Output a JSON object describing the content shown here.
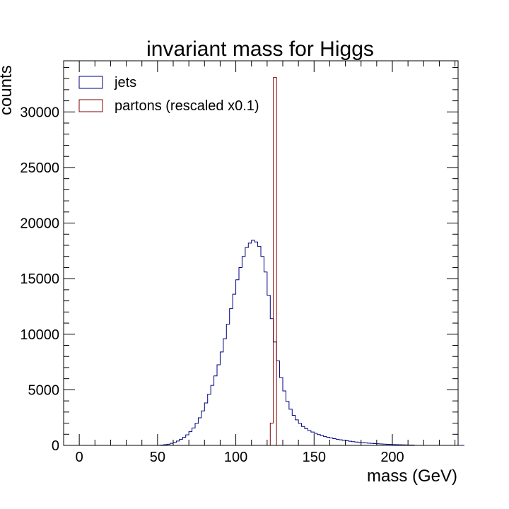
{
  "chart_data": {
    "type": "histogram",
    "title": "invariant mass for Higgs",
    "xlabel": "mass (GeV)",
    "ylabel": "counts",
    "xlim": [
      -10,
      242
    ],
    "ylim": [
      0,
      34600
    ],
    "x_ticks": [
      "0",
      "50",
      "100",
      "150",
      "200"
    ],
    "y_ticks": [
      "0",
      "5000",
      "10000",
      "15000",
      "20000",
      "25000",
      "30000"
    ],
    "grid": false,
    "legend_position": "top-left",
    "bin_width": 2,
    "series": [
      {
        "name": "jets",
        "color": "#000080",
        "bin_start": 0,
        "values": [
          0,
          0,
          0,
          0,
          0,
          0,
          0,
          0,
          0,
          0,
          0,
          0,
          0,
          0,
          0,
          0,
          0,
          0,
          0,
          0,
          0,
          0,
          0,
          0,
          0,
          10,
          30,
          60,
          100,
          180,
          270,
          390,
          550,
          720,
          950,
          1230,
          1570,
          1980,
          2480,
          3100,
          3820,
          4600,
          5400,
          6250,
          7250,
          8400,
          9600,
          10900,
          12300,
          13600,
          14900,
          16000,
          17000,
          17800,
          18200,
          18450,
          18300,
          17900,
          17000,
          15600,
          13500,
          11400,
          9300,
          7600,
          6100,
          4900,
          3950,
          3250,
          2700,
          2300,
          1980,
          1700,
          1500,
          1330,
          1200,
          1080,
          970,
          880,
          800,
          730,
          665,
          605,
          550,
          500,
          455,
          410,
          370,
          335,
          300,
          270,
          245,
          220,
          200,
          180,
          160,
          140,
          125,
          110,
          95,
          85,
          75,
          65,
          55,
          48,
          40,
          35,
          30,
          0,
          0,
          0,
          0,
          0,
          0,
          0,
          0,
          0,
          0,
          0,
          0,
          0,
          0,
          0,
          0
        ]
      },
      {
        "name": "partons (rescaled x0.1)",
        "color": "#800000",
        "bin_start": 0,
        "values": [
          0,
          0,
          0,
          0,
          0,
          0,
          0,
          0,
          0,
          0,
          0,
          0,
          0,
          0,
          0,
          0,
          0,
          0,
          0,
          0,
          0,
          0,
          0,
          0,
          0,
          0,
          0,
          0,
          0,
          0,
          0,
          0,
          0,
          0,
          0,
          0,
          0,
          0,
          0,
          0,
          0,
          0,
          0,
          0,
          0,
          0,
          0,
          0,
          0,
          0,
          0,
          0,
          0,
          0,
          0,
          0,
          0,
          0,
          0,
          0,
          0,
          2000,
          33100,
          0,
          0,
          0,
          0,
          0,
          0,
          0,
          0,
          0,
          0,
          0,
          0,
          0,
          0,
          0,
          0,
          0,
          0,
          0,
          0,
          0,
          0,
          0,
          0,
          0,
          0,
          0,
          0,
          0,
          0,
          0,
          0,
          0,
          0,
          0,
          0,
          0,
          0,
          0,
          0,
          0,
          0,
          0,
          0,
          0,
          0,
          0,
          0,
          0,
          0,
          0,
          0,
          0,
          0,
          0,
          0,
          0
        ]
      }
    ]
  }
}
